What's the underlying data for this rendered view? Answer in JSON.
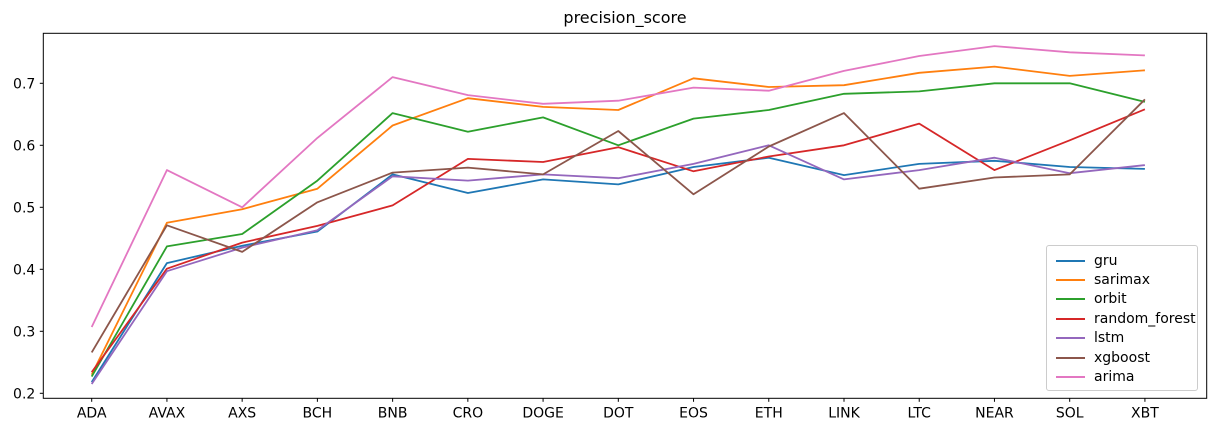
{
  "chart_data": {
    "type": "line",
    "title": "precision_score",
    "categories": [
      "ADA",
      "AVAX",
      "AXS",
      "BCH",
      "BNB",
      "CRO",
      "DOGE",
      "DOT",
      "EOS",
      "ETH",
      "LINK",
      "LTC",
      "NEAR",
      "SOL",
      "XBT"
    ],
    "series": [
      {
        "name": "gru",
        "color": "#1f77b4",
        "values": [
          0.218,
          0.41,
          0.438,
          0.461,
          0.553,
          0.523,
          0.545,
          0.537,
          0.565,
          0.58,
          0.552,
          0.57,
          0.575,
          0.565,
          0.562
        ]
      },
      {
        "name": "sarimax",
        "color": "#ff7f0e",
        "values": [
          0.23,
          0.475,
          0.497,
          0.53,
          0.632,
          0.676,
          0.662,
          0.657,
          0.708,
          0.694,
          0.697,
          0.717,
          0.727,
          0.712,
          0.721
        ]
      },
      {
        "name": "orbit",
        "color": "#2ca02c",
        "values": [
          0.227,
          0.437,
          0.457,
          0.543,
          0.652,
          0.622,
          0.645,
          0.6,
          0.643,
          0.657,
          0.683,
          0.687,
          0.7,
          0.7,
          0.67
        ]
      },
      {
        "name": "random_forest",
        "color": "#d62728",
        "values": [
          0.234,
          0.401,
          0.443,
          0.47,
          0.503,
          0.578,
          0.573,
          0.597,
          0.558,
          0.582,
          0.6,
          0.635,
          0.56,
          0.608,
          0.658
        ]
      },
      {
        "name": "lstm",
        "color": "#9467bd",
        "values": [
          0.215,
          0.397,
          0.435,
          0.463,
          0.55,
          0.543,
          0.553,
          0.547,
          0.57,
          0.6,
          0.545,
          0.56,
          0.58,
          0.555,
          0.568
        ]
      },
      {
        "name": "xgboost",
        "color": "#8c564b",
        "values": [
          0.266,
          0.471,
          0.428,
          0.508,
          0.556,
          0.564,
          0.553,
          0.623,
          0.521,
          0.598,
          0.652,
          0.53,
          0.548,
          0.553,
          0.674
        ]
      },
      {
        "name": "arima",
        "color": "#e377c2",
        "values": [
          0.307,
          0.56,
          0.5,
          0.612,
          0.71,
          0.681,
          0.667,
          0.672,
          0.693,
          0.688,
          0.72,
          0.744,
          0.76,
          0.75,
          0.745
        ]
      }
    ],
    "yticks": [
      "0.2",
      "0.3",
      "0.4",
      "0.5",
      "0.6",
      "0.7"
    ],
    "ylim": [
      0.192,
      0.781
    ],
    "grid": false,
    "legend_position": "lower right",
    "axis_color": "#000000",
    "tick_label_color": "#000000",
    "legend_border_color": "#cccccc",
    "background_color": "#ffffff"
  }
}
